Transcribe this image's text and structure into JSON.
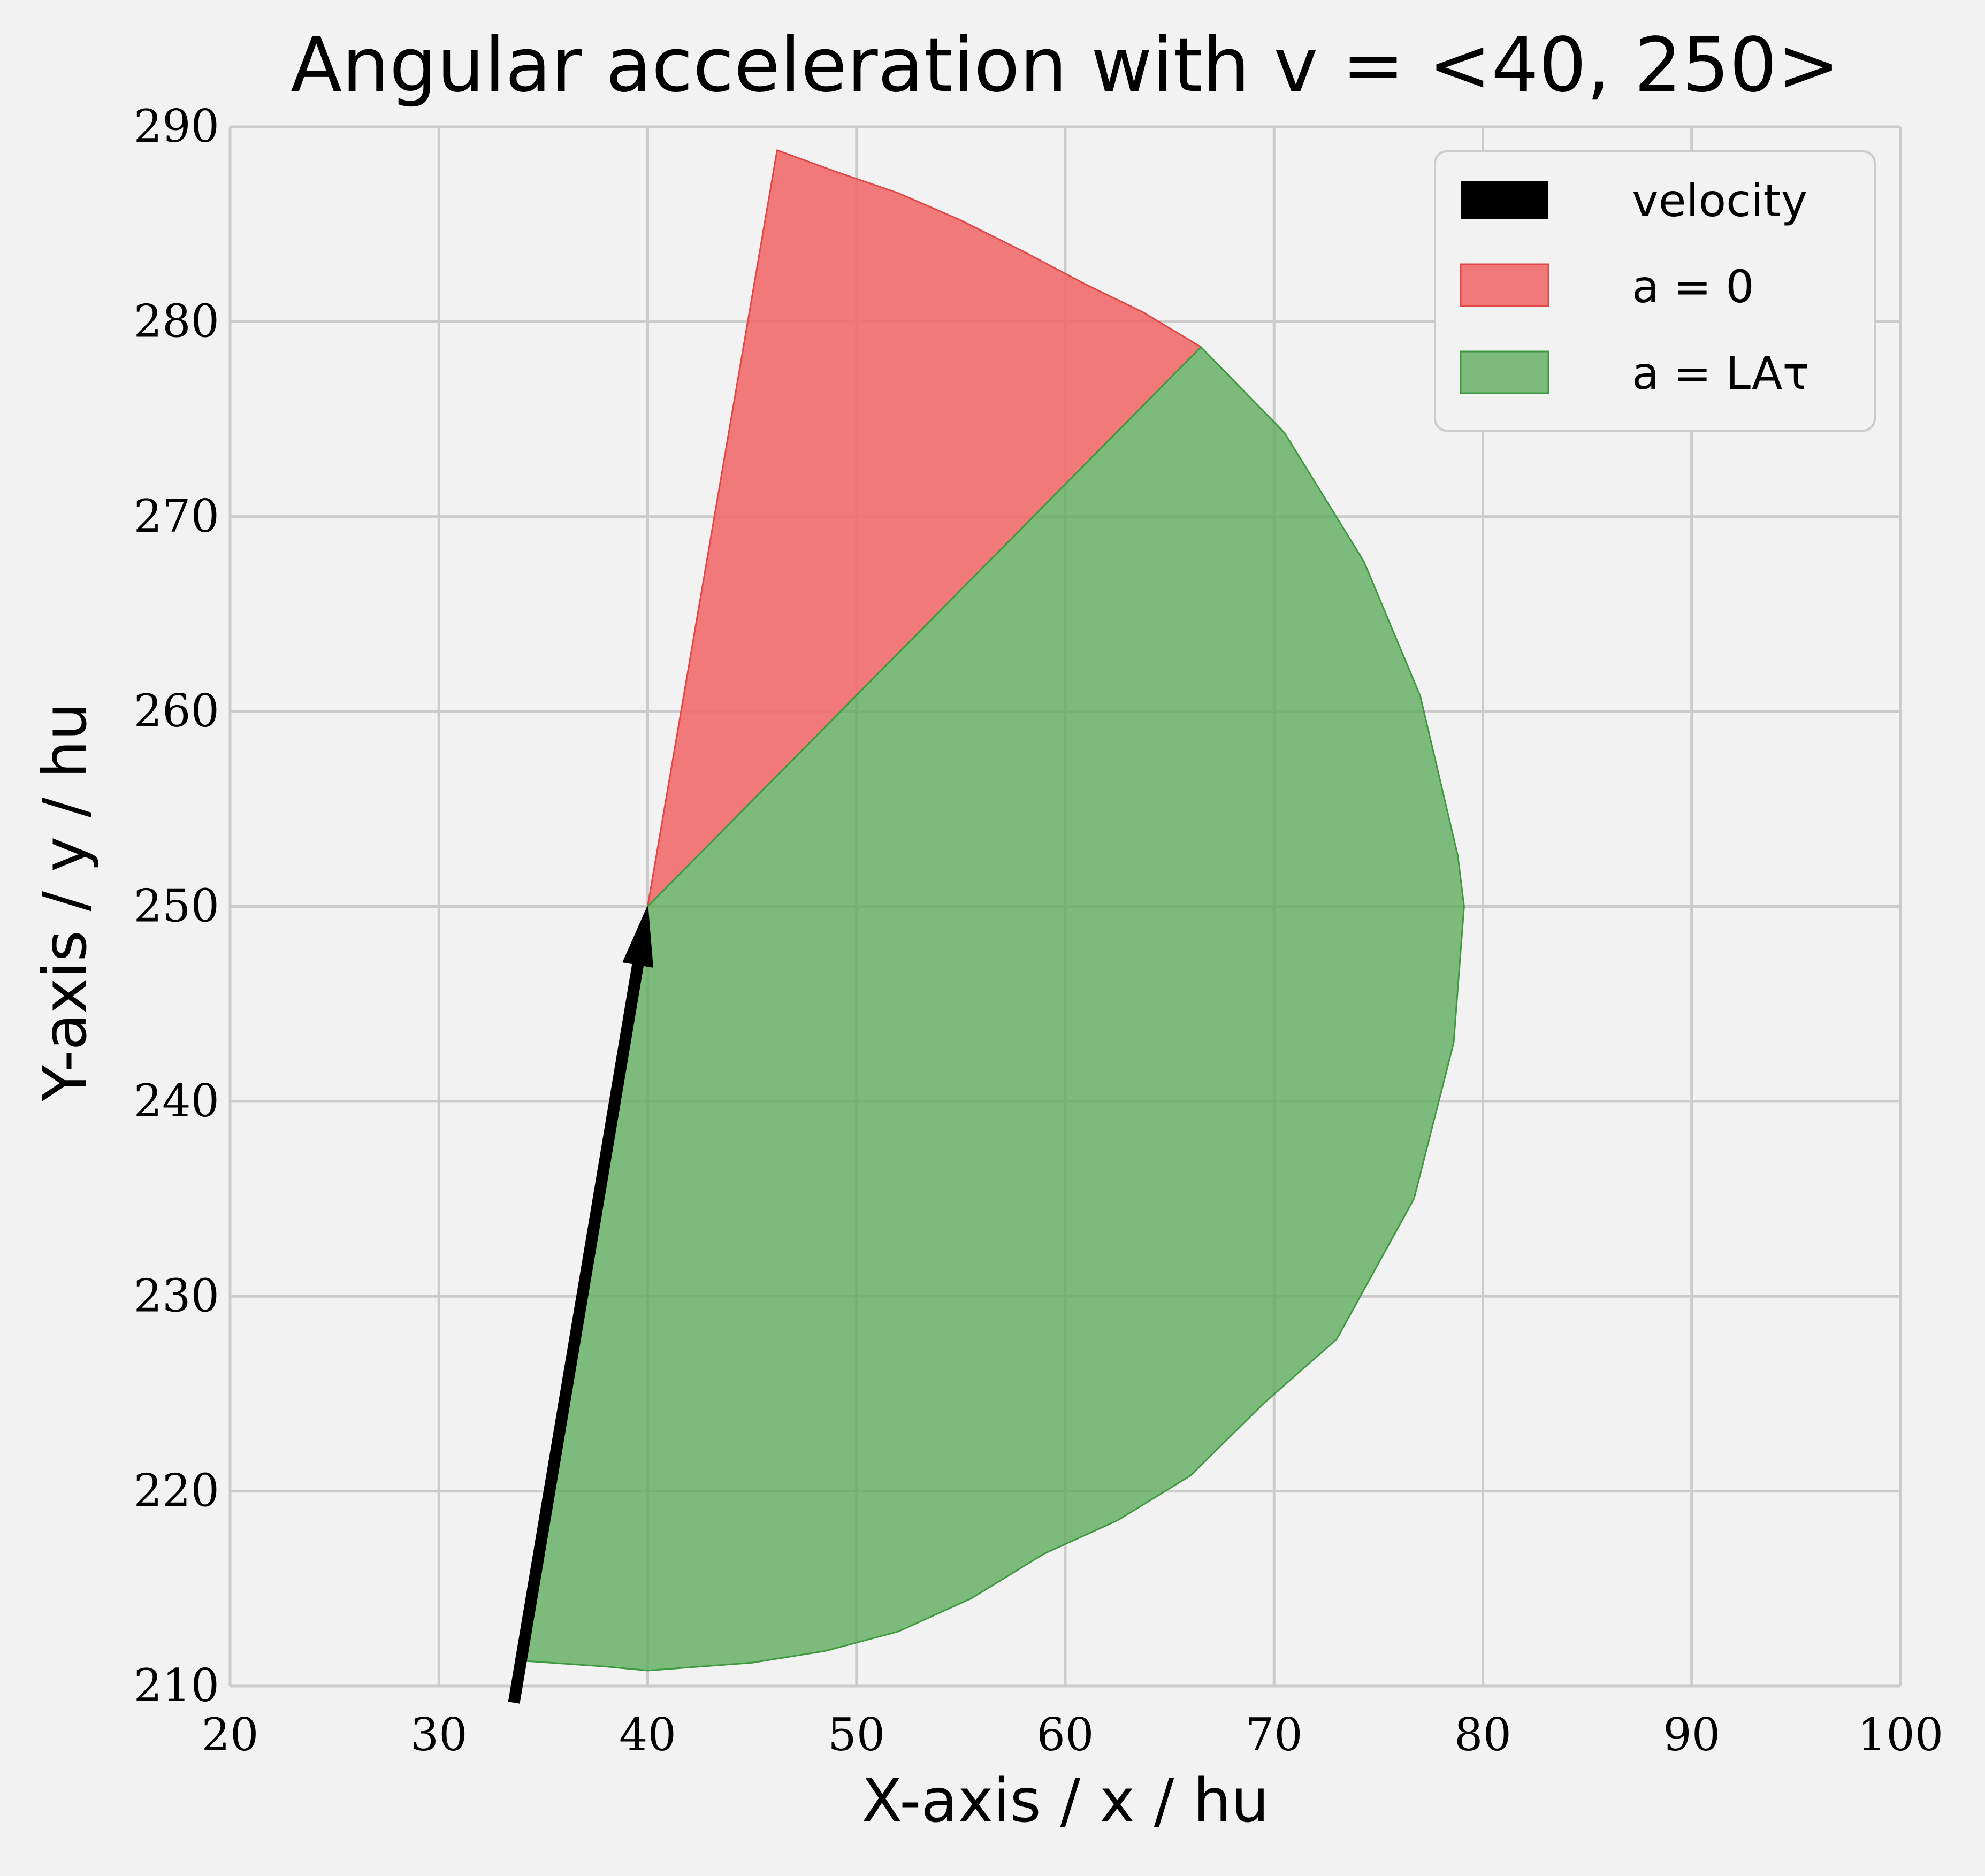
{
  "chart_data": {
    "type": "area",
    "title": "Angular acceleration with v = <40, 250>",
    "xlabel": "X-axis / x / hu",
    "ylabel": "Y-axis / y / hu",
    "xlim": [
      20,
      100
    ],
    "ylim": [
      210,
      290
    ],
    "xticks": [
      "20",
      "30",
      "40",
      "50",
      "60",
      "70",
      "80",
      "90",
      "100"
    ],
    "yticks": [
      "210",
      "220",
      "230",
      "240",
      "250",
      "260",
      "270",
      "280",
      "290"
    ],
    "grid": true,
    "legend_position": "top-right",
    "origin": [
      40,
      250
    ],
    "velocity": {
      "name": "velocity",
      "from": [
        33.6,
        210
      ],
      "to": [
        40,
        250
      ],
      "color": "#000000"
    },
    "series": [
      {
        "name": "a = 0",
        "color": "#f26b6b",
        "center": [
          40,
          250
        ],
        "polygon": [
          [
            40,
            250
          ],
          [
            46.2,
            288.8
          ],
          [
            49,
            287.7
          ],
          [
            52,
            286.6
          ],
          [
            55,
            285.2
          ],
          [
            58,
            283.6
          ],
          [
            61,
            281.9
          ],
          [
            63.7,
            280.5
          ],
          [
            66.5,
            278.7
          ]
        ]
      },
      {
        "name": "a = LAτ",
        "color": "#5fad5f",
        "center": [
          40,
          250
        ],
        "polygon": [
          [
            40,
            250
          ],
          [
            66.5,
            278.7
          ],
          [
            70.5,
            274.3
          ],
          [
            74.3,
            267.7
          ],
          [
            77,
            260.8
          ],
          [
            78.8,
            252.6
          ],
          [
            79.1,
            250
          ],
          [
            78.6,
            243
          ],
          [
            76.7,
            235
          ],
          [
            73,
            227.8
          ],
          [
            69.5,
            224.5
          ],
          [
            66,
            220.8
          ],
          [
            62.5,
            218.5
          ],
          [
            59,
            216.8
          ],
          [
            55.5,
            214.5
          ],
          [
            52,
            212.8
          ],
          [
            48.5,
            211.8
          ],
          [
            45,
            211.2
          ],
          [
            40,
            210.8
          ],
          [
            38,
            211
          ],
          [
            34,
            211.3
          ]
        ]
      }
    ]
  }
}
